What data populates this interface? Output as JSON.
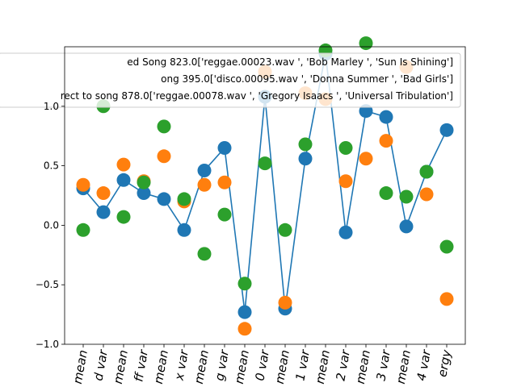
{
  "chart_data": {
    "type": "scatter",
    "title": "",
    "xlabel": "",
    "ylabel": "",
    "ylim": [
      -1.0,
      1.5
    ],
    "yticks": [
      -1.0,
      -0.5,
      0.0,
      0.5,
      1.0
    ],
    "ytick_labels": [
      "−1.0",
      "−0.5",
      "0.0",
      "0.5",
      "1.0"
    ],
    "grid": false,
    "legend_position": "top-right",
    "categories": [
      "mean",
      "d var",
      "mean",
      "ff var",
      "mean",
      "x var",
      "mean",
      "g var",
      "mean",
      "0 var",
      "mean",
      "1 var",
      "mean",
      "2 var",
      "mean",
      "3 var",
      "mean",
      "4 var",
      "ergy"
    ],
    "series": [
      {
        "name": "ed Song 823.0['reggae.00023.wav ', 'Bob Marley ', 'Sun Is Shining']",
        "color": "#1f77b4",
        "connected": true,
        "values": [
          0.31,
          0.11,
          0.38,
          0.27,
          0.22,
          -0.04,
          0.46,
          0.65,
          -0.73,
          1.08,
          -0.7,
          0.56,
          1.44,
          -0.06,
          0.96,
          0.91,
          -0.01,
          0.45,
          0.8
        ]
      },
      {
        "name": "ong 395.0['disco.00095.wav ', 'Donna Summer ', 'Bad Girls']",
        "color": "#ff7f0e",
        "connected": false,
        "values": [
          0.34,
          0.27,
          0.51,
          0.37,
          0.58,
          0.2,
          0.34,
          0.36,
          -0.87,
          1.29,
          -0.65,
          1.11,
          1.06,
          0.37,
          0.56,
          0.71,
          1.33,
          0.26,
          -0.62
        ]
      },
      {
        "name": "rect to song 878.0['reggae.00078.wav ', 'Gregory Isaacs ', 'Universal Tribulation']",
        "color": "#2ca02c",
        "connected": false,
        "values": [
          -0.04,
          1.0,
          0.07,
          0.36,
          0.83,
          0.22,
          -0.24,
          0.09,
          -0.49,
          0.52,
          -0.04,
          0.68,
          1.47,
          0.65,
          1.53,
          0.27,
          0.24,
          0.45,
          -0.18
        ]
      }
    ]
  }
}
